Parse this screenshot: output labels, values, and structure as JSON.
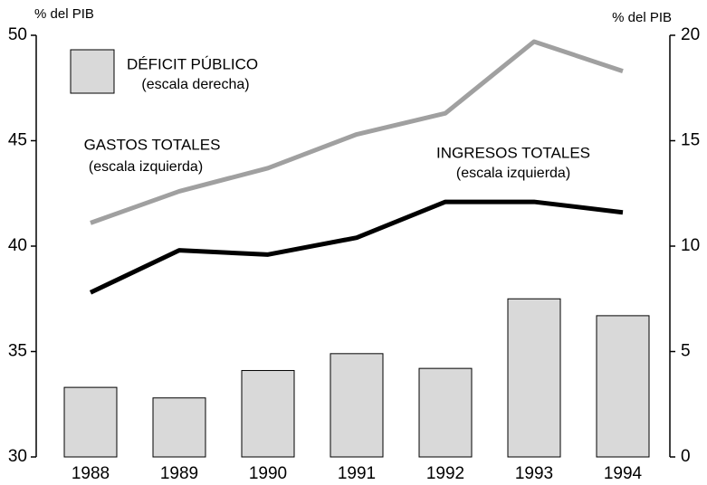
{
  "chart_data": {
    "type": "combo",
    "ylabel": "% del PIB",
    "y2label": "% del PIB",
    "categories": [
      "1988",
      "1989",
      "1990",
      "1991",
      "1992",
      "1993",
      "1994"
    ],
    "ylim": [
      30,
      50
    ],
    "yticks": [
      30,
      35,
      40,
      45,
      50
    ],
    "y2lim": [
      0,
      20
    ],
    "y2ticks": [
      0,
      5,
      10,
      15,
      20
    ],
    "series": [
      {
        "name": "DÉFICIT PÚBLICO",
        "scale_label": "(escala derecha)",
        "type": "bar",
        "axis": "y2",
        "color": "#d9d9d9",
        "values": [
          3.3,
          2.8,
          4.1,
          4.9,
          4.2,
          7.5,
          6.7
        ]
      },
      {
        "name": "GASTOS TOTALES",
        "scale_label": "(escala izquierda)",
        "type": "line",
        "axis": "y",
        "color": "#a0a0a0",
        "values": [
          41.1,
          42.6,
          43.7,
          45.3,
          46.3,
          49.7,
          48.3
        ]
      },
      {
        "name": "INGRESOS TOTALES",
        "scale_label": "(escala izquierda)",
        "type": "line",
        "axis": "y",
        "color": "#000000",
        "values": [
          37.8,
          39.8,
          39.6,
          40.4,
          42.1,
          42.1,
          41.6
        ]
      }
    ]
  }
}
